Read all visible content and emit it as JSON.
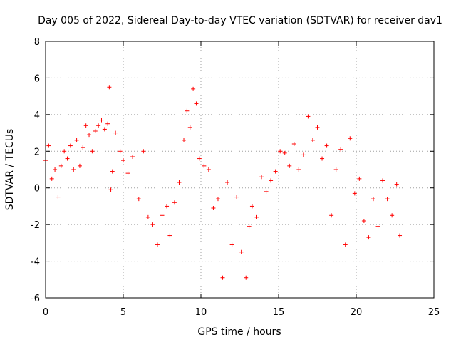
{
  "chart_data": {
    "type": "scatter",
    "title": "Day 005 of 2022, Sidereal Day-to-day VTEC variation (SDTVAR) for receiver dav1",
    "xlabel": "GPS time / hours",
    "ylabel": "SDTVAR / TECUs",
    "xlim": [
      0,
      25
    ],
    "ylim": [
      -6,
      8
    ],
    "xticks": [
      "0",
      "5",
      "10",
      "15",
      "20",
      "25"
    ],
    "yticks": [
      "-6",
      "-4",
      "-2",
      "0",
      "2",
      "4",
      "6",
      "8"
    ],
    "grid": true,
    "marker": "plus",
    "series_color": "#ff0000",
    "series": [
      {
        "name": "SDTVAR",
        "x": [
          0.0,
          0.2,
          0.4,
          0.6,
          0.8,
          1.0,
          1.2,
          1.4,
          1.6,
          1.8,
          2.0,
          2.2,
          2.4,
          2.6,
          2.8,
          3.0,
          3.2,
          3.4,
          3.6,
          3.8,
          4.0,
          4.1,
          4.2,
          4.3,
          4.5,
          4.8,
          5.0,
          5.3,
          5.6,
          6.0,
          6.3,
          6.6,
          6.9,
          7.2,
          7.5,
          7.8,
          8.0,
          8.3,
          8.6,
          8.9,
          9.1,
          9.3,
          9.5,
          9.7,
          9.9,
          10.2,
          10.5,
          10.8,
          11.1,
          11.4,
          11.7,
          12.0,
          12.3,
          12.6,
          12.9,
          13.1,
          13.3,
          13.6,
          13.9,
          14.2,
          14.5,
          14.8,
          15.1,
          15.4,
          15.7,
          16.0,
          16.3,
          16.6,
          16.9,
          17.2,
          17.5,
          17.8,
          18.1,
          18.4,
          18.7,
          19.0,
          19.3,
          19.6,
          19.9,
          20.2,
          20.5,
          20.8,
          21.1,
          21.4,
          21.7,
          22.0,
          22.3,
          22.6,
          22.8
        ],
        "y": [
          1.5,
          2.3,
          0.5,
          1.0,
          -0.5,
          1.2,
          2.0,
          1.6,
          2.3,
          1.0,
          2.6,
          1.2,
          2.2,
          3.4,
          2.9,
          2.0,
          3.1,
          3.4,
          3.7,
          3.2,
          3.5,
          5.5,
          -0.1,
          0.9,
          3.0,
          2.0,
          1.5,
          0.8,
          1.7,
          -0.6,
          2.0,
          -1.6,
          -2.0,
          -3.1,
          -1.5,
          -1.0,
          -2.6,
          -0.8,
          0.3,
          2.6,
          4.2,
          3.3,
          5.4,
          4.6,
          1.6,
          1.2,
          1.0,
          -1.1,
          -0.6,
          -4.9,
          0.3,
          -3.1,
          -0.5,
          -3.5,
          -4.9,
          -2.1,
          -1.0,
          -1.6,
          0.6,
          -0.2,
          0.4,
          0.9,
          2.0,
          1.9,
          1.2,
          2.4,
          1.0,
          1.8,
          3.9,
          2.6,
          3.3,
          1.6,
          2.3,
          -1.5,
          1.0,
          2.1,
          -3.1,
          2.7,
          -0.3,
          0.5,
          -1.8,
          -2.7,
          -0.6,
          -2.1,
          0.4,
          -0.6,
          -1.5,
          0.2,
          -2.6
        ]
      }
    ]
  }
}
